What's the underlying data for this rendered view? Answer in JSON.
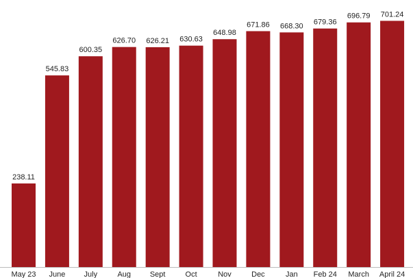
{
  "chart_data": {
    "type": "bar",
    "title": "",
    "xlabel": "",
    "ylabel": "",
    "categories": [
      "May 23",
      "June",
      "July",
      "Aug",
      "Sept",
      "Oct",
      "Nov",
      "Dec",
      "Jan",
      "Feb 24",
      "March",
      "April 24"
    ],
    "values": [
      238.11,
      545.83,
      600.35,
      626.7,
      626.21,
      630.63,
      648.98,
      671.86,
      668.3,
      679.36,
      696.79,
      701.24
    ],
    "value_labels": [
      "238.11",
      "545.83",
      "600.35",
      "626.70",
      "626.21",
      "630.63",
      "648.98",
      "671.86",
      "668.30",
      "679.36",
      "696.79",
      "701.24"
    ],
    "ylim": [
      0,
      745
    ],
    "grid": false,
    "legend": "none",
    "bar_color": "#a0191e",
    "baseline_color": "#bbbbbb"
  }
}
